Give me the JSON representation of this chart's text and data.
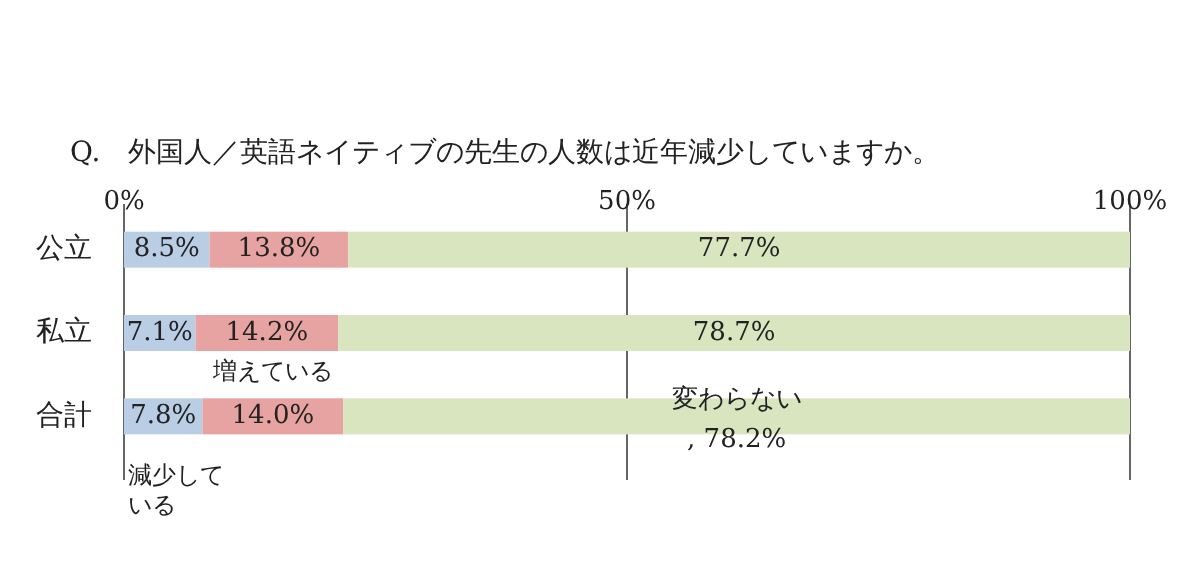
{
  "chart_data": {
    "type": "bar",
    "orientation": "horizontal",
    "stacked": true,
    "title": "Q.　外国人／英語ネイティブの先生の人数は近年減少していますか。",
    "categories": [
      "公立",
      "私立",
      "合計"
    ],
    "series": [
      {
        "name": "減少している",
        "color": "#b9cde5",
        "values": [
          8.5,
          7.1,
          7.8
        ],
        "value_labels": [
          "8.5%",
          "7.1%",
          "7.8%"
        ]
      },
      {
        "name": "増えている",
        "color": "#e6a3a1",
        "values": [
          13.8,
          14.2,
          14.0
        ],
        "value_labels": [
          "13.8%",
          "14.2%",
          "14.0%"
        ]
      },
      {
        "name": "変わらない",
        "color": "#d8e5bf",
        "values": [
          77.7,
          78.7,
          78.2
        ],
        "value_labels": [
          "77.7%",
          "78.7%",
          ", 78.2%"
        ]
      }
    ],
    "xlim": [
      0,
      100
    ],
    "xticks": [
      {
        "value": 0,
        "label": "0%"
      },
      {
        "value": 50,
        "label": "50%"
      },
      {
        "value": 100,
        "label": "100%"
      }
    ],
    "grid": "x"
  }
}
